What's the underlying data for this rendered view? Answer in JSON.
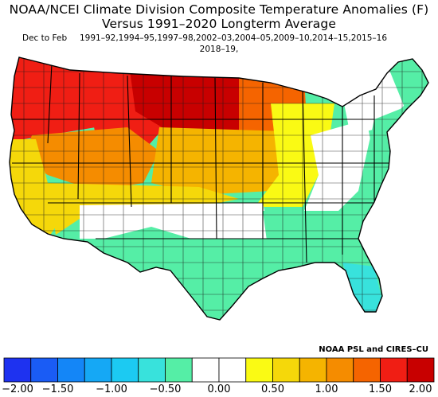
{
  "title_line1": "NOAA/NCEI Climate Division Composite Temperature Anomalies (F)",
  "title_line2": "Versus 1991–2020 Longterm Average",
  "season": "Dec to Feb",
  "years_line1": "1991–92,1994–95,1997–98,2002–03,2004–05,2009–10,2014–15,2015–16",
  "years_line2": "2018–19,",
  "credit": "NOAA PSL and CIRES–CU",
  "colorbar": {
    "colors": [
      "#1e32f0",
      "#1a5cf5",
      "#1486f7",
      "#15a8f5",
      "#1ccaf2",
      "#38e2dc",
      "#55eea6",
      "#ffffff",
      "#ffffff",
      "#fafa14",
      "#f5d80a",
      "#f5b400",
      "#f58c00",
      "#f56400",
      "#f01e14",
      "#c80000"
    ],
    "tick_labels": [
      "−2.00",
      "−1.50",
      "−1.00",
      "−0.50",
      "0.00",
      "0.50",
      "1.00",
      "1.50",
      "2.00"
    ]
  },
  "regions": [
    {
      "name": "pacific-northwest",
      "color": "#f01e14",
      "anomaly_bin": "1.75"
    },
    {
      "name": "northern-rockies",
      "color": "#f01e14",
      "anomaly_bin": "1.75"
    },
    {
      "name": "northern-plains",
      "color": "#c80000",
      "anomaly_bin": "2.00"
    },
    {
      "name": "upper-midwest",
      "color": "#f56400",
      "anomaly_bin": "1.25"
    },
    {
      "name": "great-basin",
      "color": "#f58c00",
      "anomaly_bin": "1.00"
    },
    {
      "name": "california-coast",
      "color": "#f5d80a",
      "anomaly_bin": "0.50"
    },
    {
      "name": "central-plains",
      "color": "#f5b400",
      "anomaly_bin": "0.75"
    },
    {
      "name": "southwest",
      "color": "#f5d80a",
      "anomaly_bin": "0.50"
    },
    {
      "name": "great-lakes",
      "color": "#fafa14",
      "anomaly_bin": "0.25"
    },
    {
      "name": "south-central",
      "color": "#ffffff",
      "anomaly_bin": "0.00"
    },
    {
      "name": "ohio-valley",
      "color": "#ffffff",
      "anomaly_bin": "0.00"
    },
    {
      "name": "northeast-interior",
      "color": "#ffffff",
      "anomaly_bin": "0.00"
    },
    {
      "name": "atlantic-coast",
      "color": "#55eea6",
      "anomaly_bin": "-0.25"
    },
    {
      "name": "new-england",
      "color": "#55eea6",
      "anomaly_bin": "-0.25"
    },
    {
      "name": "southeast",
      "color": "#55eea6",
      "anomaly_bin": "-0.25"
    },
    {
      "name": "gulf-coast-texas",
      "color": "#55eea6",
      "anomaly_bin": "-0.25"
    },
    {
      "name": "florida",
      "color": "#38e2dc",
      "anomaly_bin": "-0.50"
    }
  ]
}
